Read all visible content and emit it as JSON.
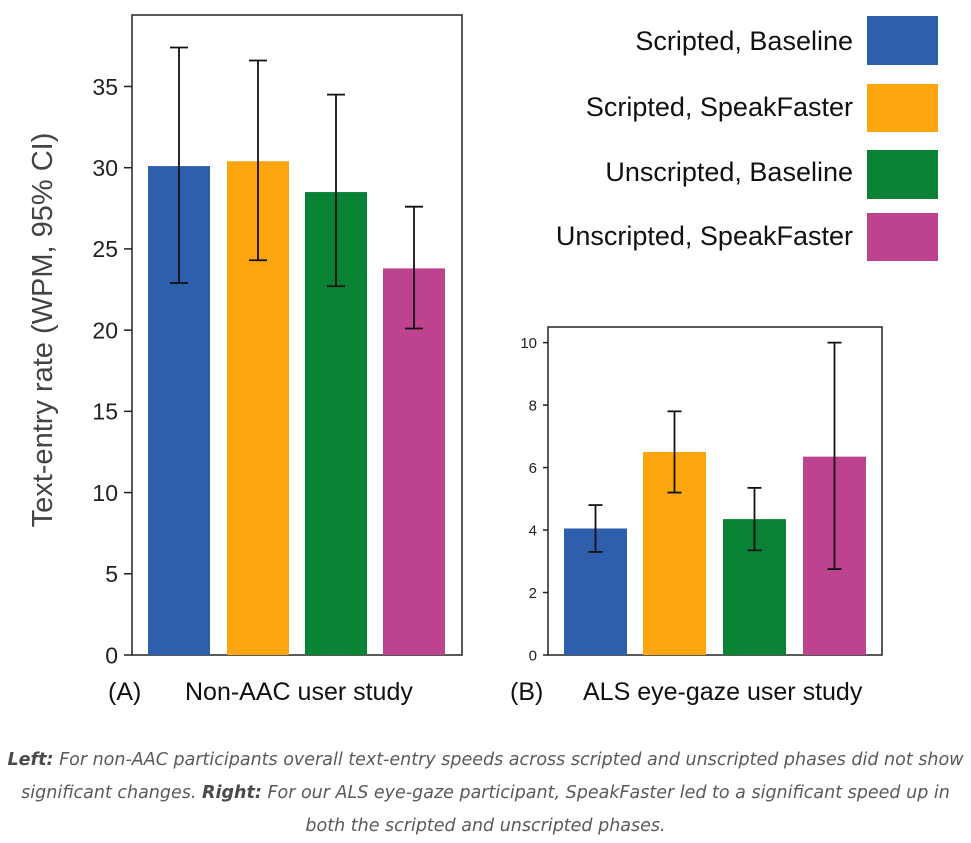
{
  "colors": {
    "scripted_baseline": "#2e5fad",
    "scripted_speakfaster": "#fda50f",
    "unscripted_baseline": "#098236",
    "unscripted_speakfaster": "#bd438f",
    "axis": "#222222",
    "caption_text": "#5a5a5a"
  },
  "legend": {
    "items": [
      {
        "label": "Scripted, Baseline",
        "color_key": "scripted_baseline"
      },
      {
        "label": "Scripted, SpeakFaster",
        "color_key": "scripted_speakfaster"
      },
      {
        "label": "Unscripted, Baseline",
        "color_key": "unscripted_baseline"
      },
      {
        "label": "Unscripted, SpeakFaster",
        "color_key": "unscripted_speakfaster"
      }
    ]
  },
  "chart_data": [
    {
      "id": "A",
      "type": "bar",
      "panel_label": "(A)",
      "title": "Non-AAC user study",
      "ylabel": "Text-entry rate (WPM, 95% CI)",
      "ylim": [
        0,
        39.4
      ],
      "yticks": [
        0,
        5,
        10,
        15,
        20,
        25,
        30,
        35
      ],
      "categories": [
        "Scripted, Baseline",
        "Scripted, SpeakFaster",
        "Unscripted, Baseline",
        "Unscripted, SpeakFaster"
      ],
      "values": [
        30.1,
        30.4,
        28.5,
        23.8
      ],
      "ci_low": [
        22.9,
        24.3,
        22.7,
        20.1
      ],
      "ci_high": [
        37.4,
        36.6,
        34.5,
        27.6
      ]
    },
    {
      "id": "B",
      "type": "bar",
      "panel_label": "(B)",
      "title": "ALS eye-gaze user study",
      "ylabel": "",
      "ylim": [
        0,
        10.5
      ],
      "yticks": [
        0,
        2,
        4,
        6,
        8,
        10
      ],
      "categories": [
        "Scripted, Baseline",
        "Scripted, SpeakFaster",
        "Unscripted, Baseline",
        "Unscripted, SpeakFaster"
      ],
      "values": [
        4.05,
        6.5,
        4.35,
        6.35
      ],
      "ci_low": [
        3.3,
        5.2,
        3.35,
        2.75
      ],
      "ci_high": [
        4.8,
        7.8,
        5.35,
        10.0
      ]
    }
  ],
  "caption": {
    "left_label": "Left:",
    "left_text": "For non-AAC participants overall text-entry speeds across scripted and unscripted phases did not show significant changes.",
    "right_label": "Right:",
    "right_text": "For our ALS eye-gaze participant, SpeakFaster led to a significant speed up in both the scripted and unscripted phases."
  }
}
